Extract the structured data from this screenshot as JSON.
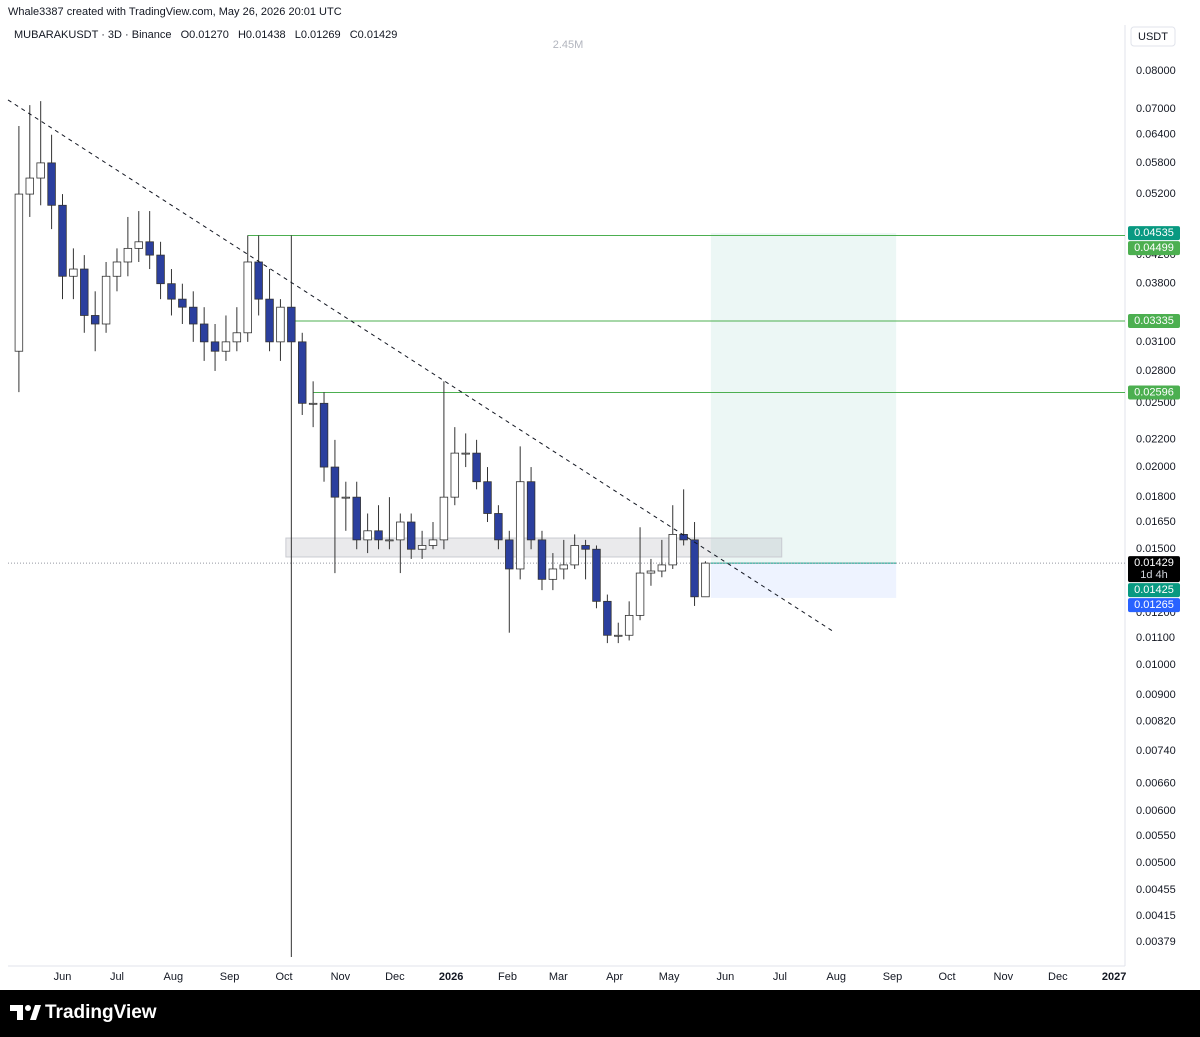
{
  "chart_data": {
    "type": "candlestick",
    "credit": "Whale3387 created with TradingView.com, May 26, 2026 20:01 UTC",
    "symbol": "MUBARAKUSDT · 3D · Binance",
    "ohlc": [
      "O0.01270",
      "H0.01438",
      "L0.01269",
      "C0.01429"
    ],
    "volume_label": "2.45M",
    "currency": "USDT",
    "brand": "TradingView",
    "log_scale": true,
    "grid": false,
    "xlim": [
      1,
      616
    ],
    "xticks": [
      {
        "value": 31,
        "label": "Jun"
      },
      {
        "value": 61,
        "label": "Jul"
      },
      {
        "value": 92,
        "label": "Aug"
      },
      {
        "value": 123,
        "label": "Sep"
      },
      {
        "value": 153,
        "label": "Oct"
      },
      {
        "value": 184,
        "label": "Nov"
      },
      {
        "value": 214,
        "label": "Dec"
      },
      {
        "value": 245,
        "label": "2026"
      },
      {
        "value": 276,
        "label": "Feb"
      },
      {
        "value": 304,
        "label": "Mar"
      },
      {
        "value": 335,
        "label": "Apr"
      },
      {
        "value": 365,
        "label": "May"
      },
      {
        "value": 396,
        "label": "Jun"
      },
      {
        "value": 426,
        "label": "Jul"
      },
      {
        "value": 457,
        "label": "Aug"
      },
      {
        "value": 488,
        "label": "Sep"
      },
      {
        "value": 518,
        "label": "Oct"
      },
      {
        "value": 549,
        "label": "Nov"
      },
      {
        "value": 579,
        "label": "Dec"
      },
      {
        "value": 610,
        "label": "2027"
      }
    ],
    "ylim": [
      0.0035,
      0.093
    ],
    "yticks": [
      {
        "value": 0.08,
        "label": "0.08000"
      },
      {
        "value": 0.07,
        "label": "0.07000"
      },
      {
        "value": 0.064,
        "label": "0.06400"
      },
      {
        "value": 0.058,
        "label": "0.05800"
      },
      {
        "value": 0.052,
        "label": "0.05200"
      },
      {
        "value": 0.042,
        "label": "0.04200"
      },
      {
        "value": 0.038,
        "label": "0.03800"
      },
      {
        "value": 0.031,
        "label": "0.03100"
      },
      {
        "value": 0.028,
        "label": "0.02800"
      },
      {
        "value": 0.025,
        "label": "0.02500"
      },
      {
        "value": 0.022,
        "label": "0.02200"
      },
      {
        "value": 0.02,
        "label": "0.02000"
      },
      {
        "value": 0.018,
        "label": "0.01800"
      },
      {
        "value": 0.0165,
        "label": "0.01650"
      },
      {
        "value": 0.015,
        "label": "0.01500"
      },
      {
        "value": 0.012,
        "label": "0.01200"
      },
      {
        "value": 0.011,
        "label": "0.01100"
      },
      {
        "value": 0.01,
        "label": "0.01000"
      },
      {
        "value": 0.009,
        "label": "0.00900"
      },
      {
        "value": 0.0082,
        "label": "0.00820"
      },
      {
        "value": 0.0074,
        "label": "0.00740"
      },
      {
        "value": 0.0066,
        "label": "0.00660"
      },
      {
        "value": 0.006,
        "label": "0.00600"
      },
      {
        "value": 0.0055,
        "label": "0.00550"
      },
      {
        "value": 0.005,
        "label": "0.00500"
      },
      0.00455,
      0.00415,
      0.00379
    ],
    "up_color": "#ffffff",
    "down_color": "#2b3f9e",
    "wick_color": "#333333",
    "candles": {
      "x": [
        7,
        13,
        19,
        25,
        31,
        37,
        43,
        49,
        55,
        61,
        67,
        73,
        79,
        85,
        91,
        97,
        103,
        109,
        115,
        121,
        127,
        133,
        139,
        145,
        151,
        157,
        163,
        169,
        175,
        181,
        187,
        193,
        199,
        205,
        211,
        217,
        223,
        229,
        235,
        241,
        247,
        253,
        259,
        265,
        271,
        277,
        283,
        289,
        295,
        301,
        307,
        313,
        319,
        325,
        331,
        337,
        343,
        349,
        355,
        361,
        367,
        373,
        379,
        385
      ],
      "open": [
        0.03,
        0.052,
        0.055,
        0.058,
        0.05,
        0.039,
        0.04,
        0.034,
        0.033,
        0.039,
        0.041,
        0.043,
        0.044,
        0.042,
        0.038,
        0.036,
        0.035,
        0.033,
        0.031,
        0.03,
        0.031,
        0.032,
        0.041,
        0.036,
        0.031,
        0.035,
        0.031,
        0.025,
        0.025,
        0.02,
        0.018,
        0.018,
        0.0155,
        0.016,
        0.0155,
        0.0155,
        0.0165,
        0.015,
        0.0152,
        0.0155,
        0.018,
        0.021,
        0.021,
        0.019,
        0.017,
        0.0155,
        0.014,
        0.019,
        0.0155,
        0.0135,
        0.014,
        0.0142,
        0.0152,
        0.015,
        0.0125,
        0.0111,
        0.0111,
        0.0119,
        0.0138,
        0.0139,
        0.0142,
        0.0158,
        0.0155,
        0.0127
      ],
      "high": [
        0.066,
        0.071,
        0.072,
        0.064,
        0.052,
        0.043,
        0.042,
        0.037,
        0.041,
        0.043,
        0.048,
        0.049,
        0.049,
        0.044,
        0.04,
        0.038,
        0.037,
        0.035,
        0.033,
        0.034,
        0.035,
        0.045,
        0.045,
        0.04,
        0.036,
        0.045,
        0.032,
        0.027,
        0.026,
        0.022,
        0.019,
        0.019,
        0.017,
        0.0175,
        0.018,
        0.017,
        0.017,
        0.016,
        0.0165,
        0.027,
        0.023,
        0.0225,
        0.022,
        0.02,
        0.0175,
        0.016,
        0.0215,
        0.02,
        0.016,
        0.0148,
        0.0155,
        0.0158,
        0.0155,
        0.0152,
        0.0128,
        0.0116,
        0.0125,
        0.0162,
        0.0145,
        0.0155,
        0.0175,
        0.0185,
        0.0165,
        0.01438
      ],
      "low": [
        0.026,
        0.048,
        0.05,
        0.046,
        0.036,
        0.036,
        0.032,
        0.03,
        0.032,
        0.037,
        0.039,
        0.041,
        0.04,
        0.036,
        0.034,
        0.033,
        0.031,
        0.029,
        0.028,
        0.029,
        0.03,
        0.031,
        0.034,
        0.03,
        0.029,
        0.0036,
        0.024,
        0.023,
        0.019,
        0.0138,
        0.016,
        0.015,
        0.0148,
        0.015,
        0.015,
        0.0138,
        0.0145,
        0.0145,
        0.015,
        0.015,
        0.0175,
        0.02,
        0.0185,
        0.0165,
        0.015,
        0.0112,
        0.0135,
        0.015,
        0.013,
        0.013,
        0.0135,
        0.014,
        0.0135,
        0.0122,
        0.0108,
        0.0108,
        0.0109,
        0.0117,
        0.0132,
        0.0136,
        0.014,
        0.0152,
        0.0123,
        0.01269
      ],
      "close": [
        0.052,
        0.055,
        0.058,
        0.05,
        0.039,
        0.04,
        0.034,
        0.033,
        0.039,
        0.041,
        0.043,
        0.044,
        0.042,
        0.038,
        0.036,
        0.035,
        0.033,
        0.031,
        0.03,
        0.031,
        0.032,
        0.041,
        0.036,
        0.031,
        0.035,
        0.031,
        0.025,
        0.025,
        0.02,
        0.018,
        0.018,
        0.0155,
        0.016,
        0.0155,
        0.0155,
        0.0165,
        0.015,
        0.0152,
        0.0155,
        0.018,
        0.021,
        0.021,
        0.019,
        0.017,
        0.0155,
        0.014,
        0.019,
        0.0155,
        0.0135,
        0.014,
        0.0142,
        0.0152,
        0.015,
        0.0125,
        0.0111,
        0.0111,
        0.0119,
        0.0138,
        0.0139,
        0.0142,
        0.0158,
        0.0155,
        0.0127,
        0.01429
      ]
    },
    "level_color": "#4caf50",
    "levels": [
      {
        "value": 0.04499,
        "from": 133
      },
      {
        "value": 0.03335,
        "from": 159
      },
      {
        "value": 0.02596,
        "from": 169
      }
    ],
    "trendline": {
      "x": [
        1,
        456
      ],
      "y": [
        0.0723,
        0.01122
      ]
    },
    "zone": {
      "x": [
        154,
        427
      ],
      "y": [
        0.0146,
        0.0156
      ]
    },
    "position": {
      "x": [
        388,
        490
      ],
      "entry": 0.01429,
      "target": 0.04535,
      "stop": 0.01265,
      "target_color": "#089981",
      "stop_color": "#2962ff"
    },
    "price_tags": [
      {
        "value": 0.04535,
        "color": "#089981"
      },
      {
        "value": 0.04499,
        "color": "#4caf50"
      },
      {
        "value": 0.03335,
        "color": "#4caf50"
      },
      {
        "value": 0.02596,
        "color": "#4caf50"
      },
      {
        "value": 0.01429,
        "color": "#000000",
        "note": "1d 4h"
      },
      {
        "value": 0.01425,
        "color": "#089981"
      },
      {
        "value": 0.01265,
        "color": "#2962ff"
      }
    ]
  }
}
